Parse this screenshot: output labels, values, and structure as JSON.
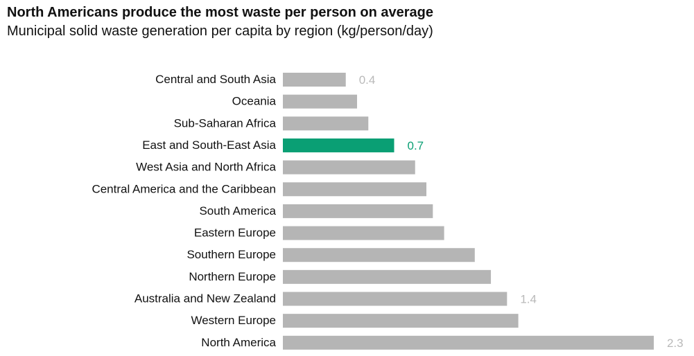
{
  "title": "North Americans produce the most waste per person on average",
  "subtitle": "Municipal solid waste generation per capita by region (kg/person/day)",
  "colors": {
    "bar": "#b5b5b5",
    "highlight": "#0a9f74",
    "label_muted": "#b9b9b9"
  },
  "chart_data": {
    "type": "bar",
    "orientation": "horizontal",
    "categories": [
      "Central and South Asia",
      "Oceania",
      "Sub-Saharan Africa",
      "East and South-East Asia",
      "West Asia and North Africa",
      "Central America and the Caribbean",
      "South America",
      "Eastern Europe",
      "Southern Europe",
      "Northern Europe",
      "Australia and New Zealand",
      "Western Europe",
      "North America"
    ],
    "values": [
      0.39,
      0.46,
      0.53,
      0.69,
      0.82,
      0.89,
      0.93,
      1.0,
      1.19,
      1.29,
      1.39,
      1.46,
      2.3
    ],
    "data_labels": [
      "0.4",
      "",
      "",
      "0.7",
      "",
      "",
      "",
      "",
      "",
      "",
      "1.4",
      "",
      "2.3"
    ],
    "highlight_category": "East and South-East Asia",
    "xlim": [
      0,
      2.3
    ],
    "grid": false,
    "legend": "none"
  }
}
